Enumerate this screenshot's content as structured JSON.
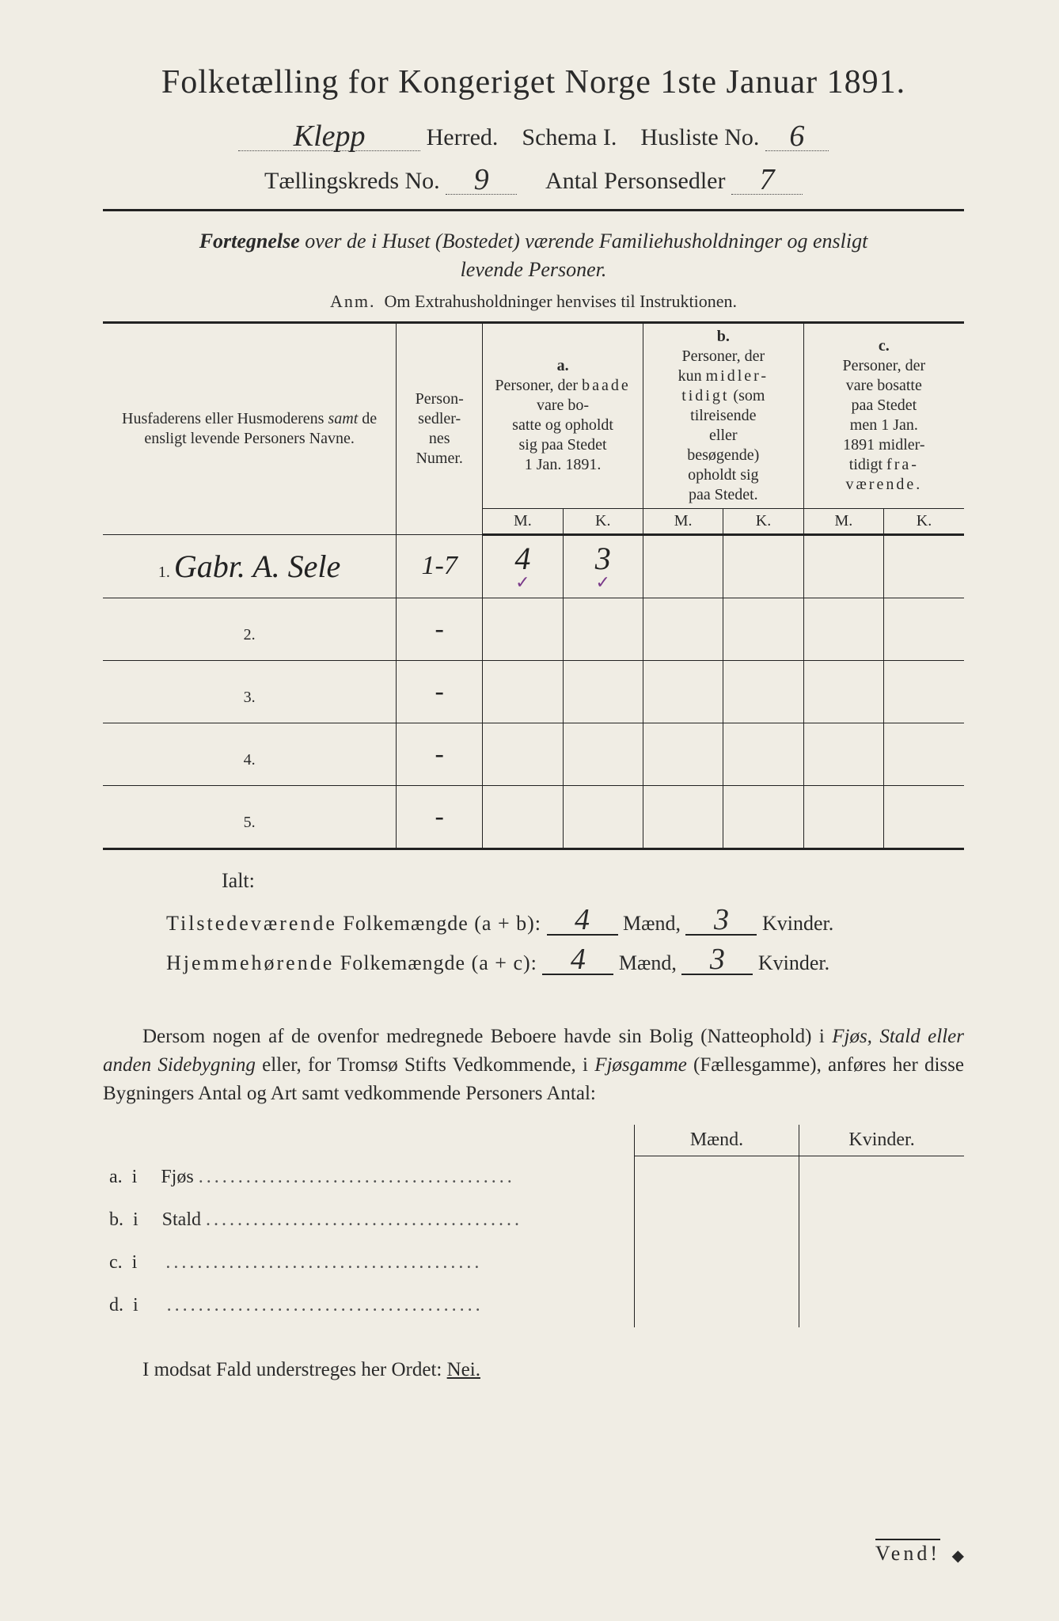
{
  "header": {
    "title": "Folketælling for Kongeriget Norge 1ste Januar 1891.",
    "herred_label": "Herred.",
    "herred_value": "Klepp",
    "schema_label": "Schema I.",
    "husliste_label": "Husliste No.",
    "husliste_value": "6",
    "kreds_label": "Tællingskreds No.",
    "kreds_value": "9",
    "personsedler_label": "Antal Personsedler",
    "personsedler_value": "7"
  },
  "subtitle": {
    "line1": "Fortegnelse over de i Huset (Bostedet) værende Familiehusholdninger og ensligt",
    "line2": "levende Personer.",
    "anm": "Anm.  Om Extrahusholdninger henvises til Instruktionen."
  },
  "columns": {
    "name": "Husfaderens eller Husmoderens samt de ensligt levende Personers Navne.",
    "num": "Person-sedler-nes Numer.",
    "a_label": "a.",
    "a_text": "Personer, der baade vare bosatte og opholdt sig paa Stedet 1 Jan. 1891.",
    "b_label": "b.",
    "b_text": "Personer, der kun midlertidigt (som tilreisende eller besøgende) opholdt sig paa Stedet.",
    "c_label": "c.",
    "c_text": "Personer, der vare bosatte paa Stedet men 1 Jan. 1891 midlertidigt fraværende.",
    "M": "M.",
    "K": "K."
  },
  "rows": [
    {
      "n": "1.",
      "name": "Gabr. A. Sele",
      "num": "1-7",
      "aM": "4",
      "aK": "3",
      "bM": "",
      "bK": "",
      "cM": "",
      "cK": "",
      "tick": true
    },
    {
      "n": "2.",
      "name": "",
      "num": "-",
      "aM": "",
      "aK": "",
      "bM": "",
      "bK": "",
      "cM": "",
      "cK": ""
    },
    {
      "n": "3.",
      "name": "",
      "num": "-",
      "aM": "",
      "aK": "",
      "bM": "",
      "bK": "",
      "cM": "",
      "cK": ""
    },
    {
      "n": "4.",
      "name": "",
      "num": "-",
      "aM": "",
      "aK": "",
      "bM": "",
      "bK": "",
      "cM": "",
      "cK": ""
    },
    {
      "n": "5.",
      "name": "",
      "num": "-",
      "aM": "",
      "aK": "",
      "bM": "",
      "bK": "",
      "cM": "",
      "cK": ""
    }
  ],
  "totals": {
    "ialt": "Ialt:",
    "tilstede_label": "Tilstedeværende Folkemængde (a + b):",
    "hjemme_label": "Hjemmehørende Folkemængde (a + c):",
    "maend": "Mænd,",
    "kvinder": "Kvinder.",
    "t_m": "4",
    "t_k": "3",
    "h_m": "4",
    "h_k": "3"
  },
  "paragraph": "Dersom nogen af de ovenfor medregnede Beboere havde sin Bolig (Natteophold) i Fjøs, Stald eller anden Sidebygning eller, for Tromsø Stifts Vedkommende, i Fjøsgamme (Fællesgamme), anføres her disse Bygningers Antal og Art samt vedkommende Personers Antal:",
  "bygn": {
    "maend": "Mænd.",
    "kvinder": "Kvinder.",
    "rows": [
      {
        "k": "a.",
        "i": "i",
        "label": "Fjøs"
      },
      {
        "k": "b.",
        "i": "i",
        "label": "Stald"
      },
      {
        "k": "c.",
        "i": "i",
        "label": ""
      },
      {
        "k": "d.",
        "i": "i",
        "label": ""
      }
    ]
  },
  "modsat": {
    "text": "I modsat Fald understreges her Ordet: ",
    "nei": "Nei."
  },
  "vend": "Vend!"
}
